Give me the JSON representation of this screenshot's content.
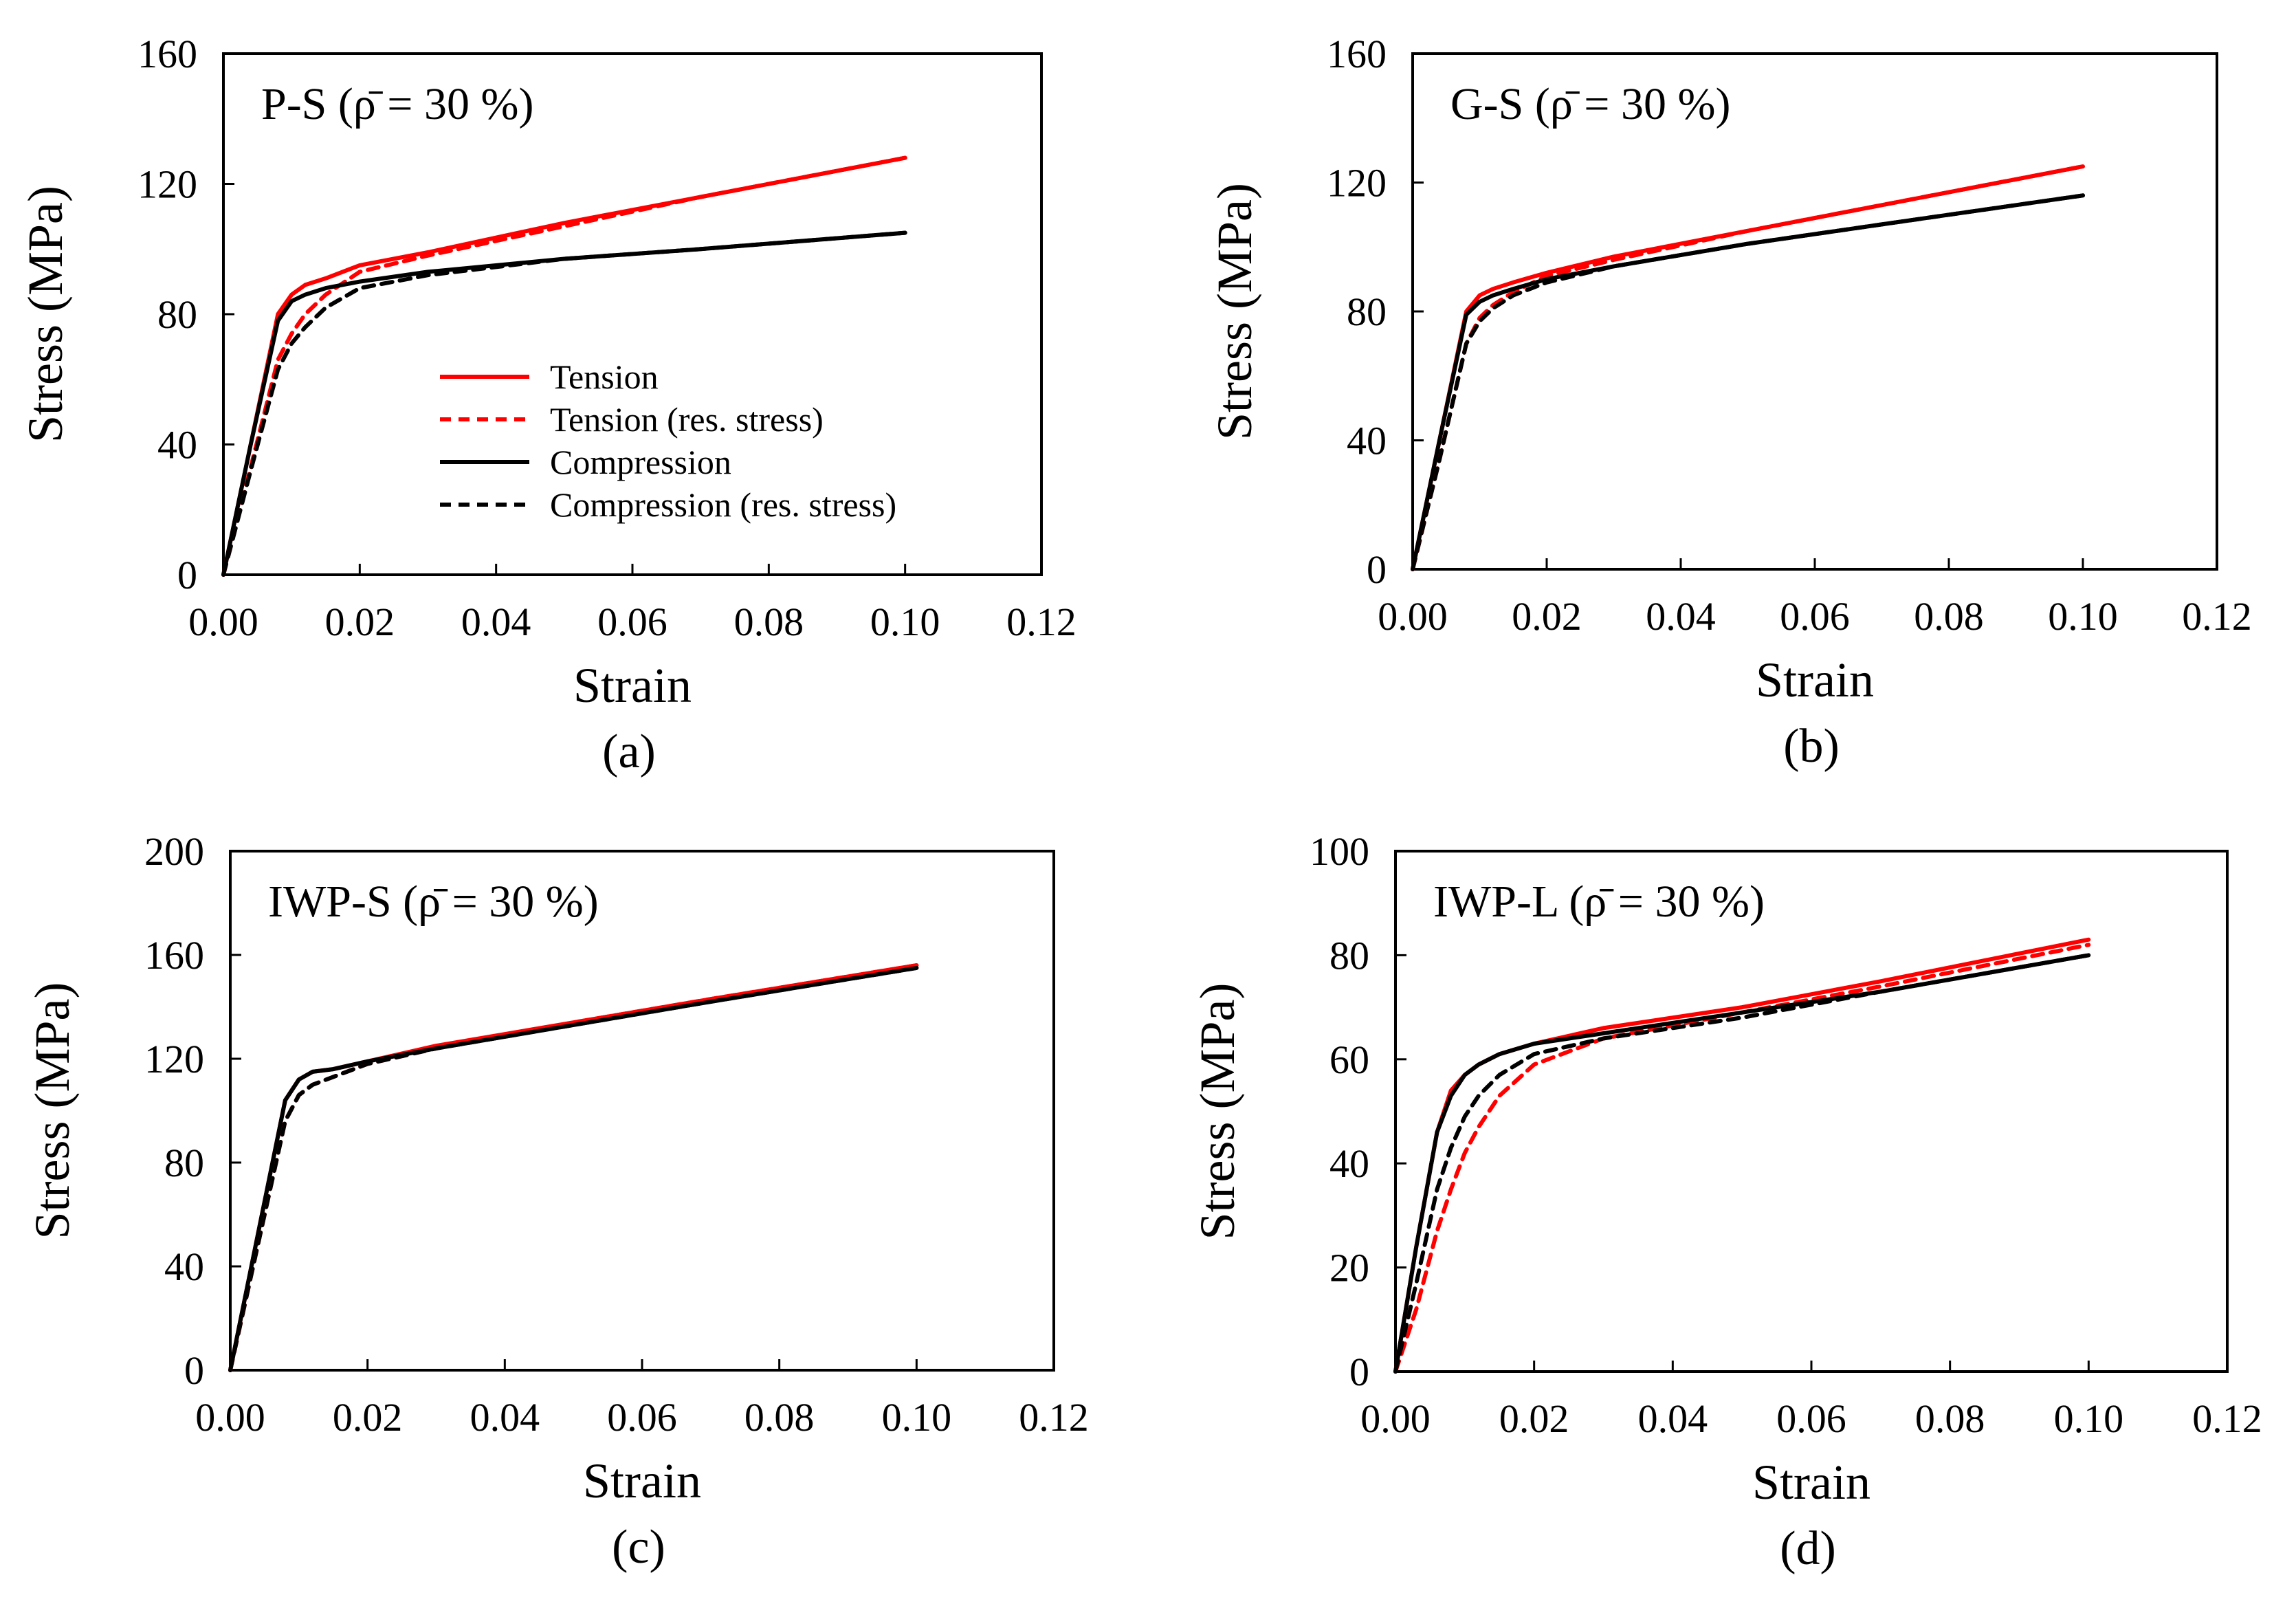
{
  "chart_data": [
    {
      "type": "line",
      "panel_label": "P-S (ρ̄ = 30 %)",
      "caption": "(a)",
      "xlabel": "Strain",
      "ylabel": "Stress (MPa)",
      "xlim": [
        0,
        0.12
      ],
      "ylim": [
        0,
        160
      ],
      "xticks": [
        "0.00",
        "0.02",
        "0.04",
        "0.06",
        "0.08",
        "0.10",
        "0.12"
      ],
      "yticks": [
        "0",
        "40",
        "80",
        "120",
        "160"
      ],
      "grid": false,
      "legend_position": "center-right",
      "legend": [
        {
          "label": "Tension",
          "color": "#ff0000",
          "dash": "solid"
        },
        {
          "label": "Tension (res. stress)",
          "color": "#ff0000",
          "dash": "dashed"
        },
        {
          "label": "Compression",
          "color": "#000000",
          "dash": "solid"
        },
        {
          "label": "Compression (res. stress)",
          "color": "#000000",
          "dash": "dashed"
        }
      ],
      "series": [
        {
          "name": "Tension",
          "color": "#ff0000",
          "dash": "solid",
          "x": [
            0,
            0.004,
            0.008,
            0.01,
            0.012,
            0.015,
            0.02,
            0.03,
            0.05,
            0.07,
            0.1
          ],
          "y": [
            0,
            40,
            80,
            86,
            89,
            91,
            95,
            99,
            108,
            116,
            128
          ]
        },
        {
          "name": "Tension (res. stress)",
          "color": "#ff0000",
          "dash": "dashed",
          "x": [
            0,
            0.004,
            0.008,
            0.01,
            0.012,
            0.015,
            0.02,
            0.03,
            0.05,
            0.07,
            0.1
          ],
          "y": [
            0,
            33,
            66,
            74,
            80,
            86,
            93,
            98,
            107,
            116,
            128
          ]
        },
        {
          "name": "Compression",
          "color": "#000000",
          "dash": "solid",
          "x": [
            0,
            0.004,
            0.008,
            0.01,
            0.012,
            0.015,
            0.02,
            0.03,
            0.05,
            0.07,
            0.1
          ],
          "y": [
            0,
            40,
            78,
            84,
            86,
            88,
            90,
            93,
            97,
            100,
            105
          ]
        },
        {
          "name": "Compression (res. stress)",
          "color": "#000000",
          "dash": "dashed",
          "x": [
            0,
            0.004,
            0.008,
            0.01,
            0.012,
            0.015,
            0.02,
            0.03,
            0.05,
            0.07,
            0.1
          ],
          "y": [
            0,
            32,
            63,
            71,
            76,
            82,
            88,
            92,
            97,
            100,
            105
          ]
        }
      ]
    },
    {
      "type": "line",
      "panel_label": "G-S (ρ̄ = 30 %)",
      "caption": "(b)",
      "xlabel": "Strain",
      "ylabel": "Stress (MPa)",
      "xlim": [
        0,
        0.12
      ],
      "ylim": [
        0,
        160
      ],
      "xticks": [
        "0.00",
        "0.02",
        "0.04",
        "0.06",
        "0.08",
        "0.10",
        "0.12"
      ],
      "yticks": [
        "0",
        "40",
        "80",
        "120",
        "160"
      ],
      "grid": false,
      "series": [
        {
          "name": "Tension",
          "color": "#ff0000",
          "dash": "solid",
          "x": [
            0,
            0.004,
            0.008,
            0.01,
            0.012,
            0.015,
            0.02,
            0.03,
            0.05,
            0.07,
            0.1
          ],
          "y": [
            0,
            40,
            80,
            85,
            87,
            89,
            92,
            97,
            105,
            113,
            125
          ]
        },
        {
          "name": "Tension (res. stress)",
          "color": "#ff0000",
          "dash": "dashed",
          "x": [
            0,
            0.004,
            0.008,
            0.01,
            0.012,
            0.015,
            0.02,
            0.03,
            0.05,
            0.07,
            0.1
          ],
          "y": [
            0,
            34,
            70,
            78,
            82,
            86,
            91,
            96,
            105,
            113,
            125
          ]
        },
        {
          "name": "Compression",
          "color": "#000000",
          "dash": "solid",
          "x": [
            0,
            0.004,
            0.008,
            0.01,
            0.012,
            0.015,
            0.02,
            0.03,
            0.05,
            0.07,
            0.1
          ],
          "y": [
            0,
            40,
            79,
            83,
            85,
            87,
            90,
            94,
            101,
            107,
            116
          ]
        },
        {
          "name": "Compression (res. stress)",
          "color": "#000000",
          "dash": "dashed",
          "x": [
            0,
            0.004,
            0.008,
            0.01,
            0.012,
            0.015,
            0.02,
            0.03,
            0.05,
            0.07,
            0.1
          ],
          "y": [
            0,
            34,
            70,
            77,
            81,
            85,
            89,
            94,
            101,
            107,
            116
          ]
        }
      ]
    },
    {
      "type": "line",
      "panel_label": "IWP-S (ρ̄ = 30 %)",
      "caption": "(c)",
      "xlabel": "Strain",
      "ylabel": "Stress (MPa)",
      "xlim": [
        0,
        0.12
      ],
      "ylim": [
        0,
        200
      ],
      "xticks": [
        "0.00",
        "0.02",
        "0.04",
        "0.06",
        "0.08",
        "0.10",
        "0.12"
      ],
      "yticks": [
        "0",
        "40",
        "80",
        "120",
        "160",
        "200"
      ],
      "grid": false,
      "series": [
        {
          "name": "Tension",
          "color": "#ff0000",
          "dash": "solid",
          "x": [
            0,
            0.004,
            0.008,
            0.01,
            0.012,
            0.015,
            0.02,
            0.03,
            0.05,
            0.07,
            0.1
          ],
          "y": [
            0,
            52,
            104,
            112,
            115,
            116,
            119,
            125,
            134,
            143,
            156
          ]
        },
        {
          "name": "Tension (res. stress)",
          "color": "#ff0000",
          "dash": "dashed",
          "x": [
            0,
            0.004,
            0.008,
            0.01,
            0.012,
            0.015,
            0.02,
            0.03,
            0.05,
            0.07,
            0.1
          ],
          "y": [
            0,
            48,
            96,
            106,
            110,
            113,
            118,
            124,
            134,
            143,
            156
          ]
        },
        {
          "name": "Compression",
          "color": "#000000",
          "dash": "solid",
          "x": [
            0,
            0.004,
            0.008,
            0.01,
            0.012,
            0.015,
            0.02,
            0.03,
            0.05,
            0.07,
            0.1
          ],
          "y": [
            0,
            52,
            104,
            112,
            115,
            116,
            119,
            124,
            133,
            142,
            155
          ]
        },
        {
          "name": "Compression (res. stress)",
          "color": "#000000",
          "dash": "dashed",
          "x": [
            0,
            0.004,
            0.008,
            0.01,
            0.012,
            0.015,
            0.02,
            0.03,
            0.05,
            0.07,
            0.1
          ],
          "y": [
            0,
            48,
            96,
            106,
            110,
            113,
            118,
            124,
            133,
            142,
            155
          ]
        }
      ]
    },
    {
      "type": "line",
      "panel_label": "IWP-L (ρ̄ = 30 %)",
      "caption": "(d)",
      "xlabel": "Strain",
      "ylabel": "Stress (MPa)",
      "xlim": [
        0,
        0.12
      ],
      "ylim": [
        0,
        100
      ],
      "xticks": [
        "0.00",
        "0.02",
        "0.04",
        "0.06",
        "0.08",
        "0.10",
        "0.12"
      ],
      "yticks": [
        "0",
        "20",
        "40",
        "60",
        "80",
        "100"
      ],
      "grid": false,
      "series": [
        {
          "name": "Tension",
          "color": "#ff0000",
          "dash": "solid",
          "x": [
            0,
            0.003,
            0.006,
            0.008,
            0.01,
            0.012,
            0.015,
            0.02,
            0.03,
            0.05,
            0.07,
            0.1
          ],
          "y": [
            0,
            24,
            46,
            54,
            57,
            59,
            61,
            63,
            66,
            70,
            75,
            83
          ]
        },
        {
          "name": "Tension (res. stress)",
          "color": "#ff0000",
          "dash": "dashed",
          "x": [
            0,
            0.003,
            0.006,
            0.008,
            0.01,
            0.012,
            0.015,
            0.02,
            0.03,
            0.05,
            0.07,
            0.1
          ],
          "y": [
            0,
            12,
            27,
            35,
            42,
            47,
            53,
            59,
            64,
            69,
            74,
            82
          ]
        },
        {
          "name": "Compression",
          "color": "#000000",
          "dash": "solid",
          "x": [
            0,
            0.003,
            0.006,
            0.008,
            0.01,
            0.012,
            0.015,
            0.02,
            0.03,
            0.05,
            0.07,
            0.1
          ],
          "y": [
            0,
            24,
            46,
            53,
            57,
            59,
            61,
            63,
            65,
            69,
            73,
            80
          ]
        },
        {
          "name": "Compression (res. stress)",
          "color": "#000000",
          "dash": "dashed",
          "x": [
            0,
            0.003,
            0.006,
            0.008,
            0.01,
            0.012,
            0.015,
            0.02,
            0.03,
            0.05,
            0.07,
            0.1
          ],
          "y": [
            0,
            17,
            35,
            43,
            49,
            53,
            57,
            61,
            64,
            68,
            73,
            80
          ]
        }
      ]
    }
  ]
}
